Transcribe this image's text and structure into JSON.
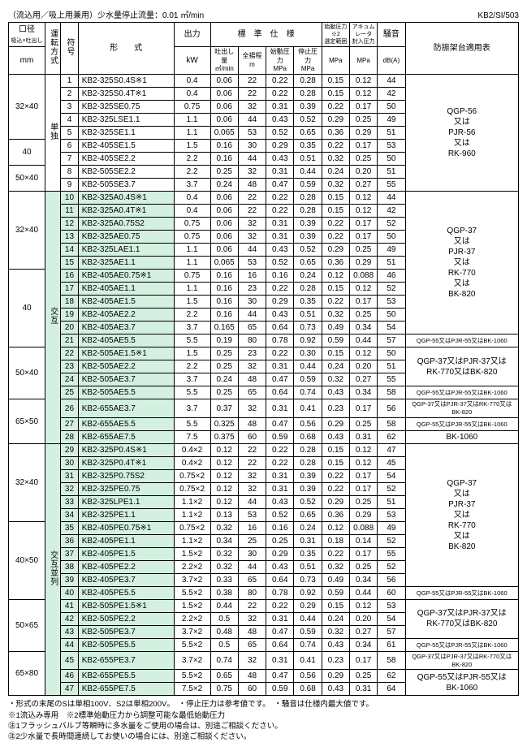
{
  "header": {
    "left": "（流込用／吸上用兼用）少水量停止流量：0.01 ㎥/min",
    "right": "KB2/SI/503"
  },
  "th": {
    "koukei1": "口径",
    "koukei2": "吸込×吐出し",
    "koukei3": "mm",
    "unten": "運転方式",
    "fugou": "符号",
    "keishiki": "形　　式",
    "shutsu1": "出力",
    "shutsu2": "kW",
    "hyoujun": "標　準　仕　様",
    "toshutsu1": "吐出し量",
    "toshutsu2": "㎥/min",
    "zenyoutei1": "全揚程",
    "zenyoutei2": "m",
    "shidou1": "始動圧力",
    "shidou2": "MPa",
    "teishi1": "停止圧力",
    "teishi2": "MPa",
    "shidou21": "始動圧力※2",
    "shidou22": "選定範囲",
    "shidou23": "MPa",
    "akyumu1": "アキュムレータ",
    "akyumu2": "封入圧力",
    "akyumu3": "MPa",
    "souon1": "騒音",
    "souon2": "dB(A)",
    "boushin": "防振架台適用表"
  },
  "mode": {
    "tandoku": "単独",
    "kougo": "交互",
    "kougoheiretsu": "交互並列"
  },
  "notes": {
    "n1": "・形式の末尾のSは単相100V、S2は単相200V。　・停止圧力は参考値です。　・騒音は仕様内最大値です。",
    "n2": "※1流込み専用　※2標準始動圧力から調整可能な最低始動圧力",
    "n3": "㊟1フラッシュバルブ等瞬時に多水量をご使用の場合は、別途ご相談ください。",
    "n4": "㊟2少水量で長時間連続してお使いの場合には、別途ご相談ください。"
  },
  "rows": [
    {
      "n": "1",
      "m": "KB2-325S0.4S※1",
      "kw": "0.4",
      "q": "0.06",
      "h": "22",
      "p1": "0.22",
      "p2": "0.28",
      "p3": "0.15",
      "p4": "0.12",
      "db": "44"
    },
    {
      "n": "2",
      "m": "KB2-325S0.4T※1",
      "kw": "0.4",
      "q": "0.06",
      "h": "22",
      "p1": "0.22",
      "p2": "0.28",
      "p3": "0.15",
      "p4": "0.12",
      "db": "42"
    },
    {
      "n": "3",
      "m": "KB2-325SE0.75",
      "kw": "0.75",
      "q": "0.06",
      "h": "32",
      "p1": "0.31",
      "p2": "0.39",
      "p3": "0.22",
      "p4": "0.17",
      "db": "50"
    },
    {
      "n": "4",
      "m": "KB2-325LSE1.1",
      "kw": "1.1",
      "q": "0.06",
      "h": "44",
      "p1": "0.43",
      "p2": "0.52",
      "p3": "0.29",
      "p4": "0.25",
      "db": "49"
    },
    {
      "n": "5",
      "m": "KB2-325SE1.1",
      "kw": "1.1",
      "q": "0.065",
      "h": "53",
      "p1": "0.52",
      "p2": "0.65",
      "p3": "0.36",
      "p4": "0.29",
      "db": "51"
    },
    {
      "n": "6",
      "m": "KB2-405SE1.5",
      "kw": "1.5",
      "q": "0.16",
      "h": "30",
      "p1": "0.29",
      "p2": "0.35",
      "p3": "0.22",
      "p4": "0.17",
      "db": "53"
    },
    {
      "n": "7",
      "m": "KB2-405SE2.2",
      "kw": "2.2",
      "q": "0.16",
      "h": "44",
      "p1": "0.43",
      "p2": "0.51",
      "p3": "0.32",
      "p4": "0.25",
      "db": "50"
    },
    {
      "n": "8",
      "m": "KB2-505SE2.2",
      "kw": "2.2",
      "q": "0.25",
      "h": "32",
      "p1": "0.31",
      "p2": "0.44",
      "p3": "0.24",
      "p4": "0.20",
      "db": "51"
    },
    {
      "n": "9",
      "m": "KB2-505SE3.7",
      "kw": "3.7",
      "q": "0.24",
      "h": "48",
      "p1": "0.47",
      "p2": "0.59",
      "p3": "0.32",
      "p4": "0.27",
      "db": "55"
    },
    {
      "n": "10",
      "m": "KB2-325A0.4S※1",
      "kw": "0.4",
      "q": "0.06",
      "h": "22",
      "p1": "0.22",
      "p2": "0.28",
      "p3": "0.15",
      "p4": "0.12",
      "db": "44"
    },
    {
      "n": "11",
      "m": "KB2-325A0.4T※1",
      "kw": "0.4",
      "q": "0.06",
      "h": "22",
      "p1": "0.22",
      "p2": "0.28",
      "p3": "0.15",
      "p4": "0.12",
      "db": "42"
    },
    {
      "n": "12",
      "m": "KB2-325A0.75S2",
      "kw": "0.75",
      "q": "0.06",
      "h": "32",
      "p1": "0.31",
      "p2": "0.39",
      "p3": "0.22",
      "p4": "0.17",
      "db": "52"
    },
    {
      "n": "13",
      "m": "KB2-325AE0.75",
      "kw": "0.75",
      "q": "0.06",
      "h": "32",
      "p1": "0.31",
      "p2": "0.39",
      "p3": "0.22",
      "p4": "0.17",
      "db": "50"
    },
    {
      "n": "14",
      "m": "KB2-325LAE1.1",
      "kw": "1.1",
      "q": "0.06",
      "h": "44",
      "p1": "0.43",
      "p2": "0.52",
      "p3": "0.29",
      "p4": "0.25",
      "db": "49"
    },
    {
      "n": "15",
      "m": "KB2-325AE1.1",
      "kw": "1.1",
      "q": "0.065",
      "h": "53",
      "p1": "0.52",
      "p2": "0.65",
      "p3": "0.36",
      "p4": "0.29",
      "db": "51"
    },
    {
      "n": "16",
      "m": "KB2-405AE0.75※1",
      "kw": "0.75",
      "q": "0.16",
      "h": "16",
      "p1": "0.16",
      "p2": "0.24",
      "p3": "0.12",
      "p4": "0.088",
      "db": "46"
    },
    {
      "n": "17",
      "m": "KB2-405AE1.1",
      "kw": "1.1",
      "q": "0.16",
      "h": "23",
      "p1": "0.22",
      "p2": "0.28",
      "p3": "0.15",
      "p4": "0.12",
      "db": "52"
    },
    {
      "n": "18",
      "m": "KB2-405AE1.5",
      "kw": "1.5",
      "q": "0.16",
      "h": "30",
      "p1": "0.29",
      "p2": "0.35",
      "p3": "0.22",
      "p4": "0.17",
      "db": "53"
    },
    {
      "n": "19",
      "m": "KB2-405AE2.2",
      "kw": "2.2",
      "q": "0.16",
      "h": "44",
      "p1": "0.43",
      "p2": "0.51",
      "p3": "0.32",
      "p4": "0.25",
      "db": "50"
    },
    {
      "n": "20",
      "m": "KB2-405AE3.7",
      "kw": "3.7",
      "q": "0.165",
      "h": "65",
      "p1": "0.64",
      "p2": "0.73",
      "p3": "0.49",
      "p4": "0.34",
      "db": "54"
    },
    {
      "n": "21",
      "m": "KB2-405AE5.5",
      "kw": "5.5",
      "q": "0.19",
      "h": "80",
      "p1": "0.78",
      "p2": "0.92",
      "p3": "0.59",
      "p4": "0.44",
      "db": "57"
    },
    {
      "n": "22",
      "m": "KB2-505AE1.5※1",
      "kw": "1.5",
      "q": "0.25",
      "h": "23",
      "p1": "0.22",
      "p2": "0.30",
      "p3": "0.15",
      "p4": "0.12",
      "db": "50"
    },
    {
      "n": "23",
      "m": "KB2-505AE2.2",
      "kw": "2.2",
      "q": "0.25",
      "h": "32",
      "p1": "0.31",
      "p2": "0.44",
      "p3": "0.24",
      "p4": "0.20",
      "db": "51"
    },
    {
      "n": "24",
      "m": "KB2-505AE3.7",
      "kw": "3.7",
      "q": "0.24",
      "h": "48",
      "p1": "0.47",
      "p2": "0.59",
      "p3": "0.32",
      "p4": "0.27",
      "db": "55"
    },
    {
      "n": "25",
      "m": "KB2-505AE5.5",
      "kw": "5.5",
      "q": "0.25",
      "h": "65",
      "p1": "0.64",
      "p2": "0.74",
      "p3": "0.43",
      "p4": "0.34",
      "db": "58"
    },
    {
      "n": "26",
      "m": "KB2-655AE3.7",
      "kw": "3.7",
      "q": "0.37",
      "h": "32",
      "p1": "0.31",
      "p2": "0.41",
      "p3": "0.23",
      "p4": "0.17",
      "db": "56"
    },
    {
      "n": "27",
      "m": "KB2-655AE5.5",
      "kw": "5.5",
      "q": "0.325",
      "h": "48",
      "p1": "0.47",
      "p2": "0.56",
      "p3": "0.29",
      "p4": "0.25",
      "db": "58"
    },
    {
      "n": "28",
      "m": "KB2-655AE7.5",
      "kw": "7.5",
      "q": "0.375",
      "h": "60",
      "p1": "0.59",
      "p2": "0.68",
      "p3": "0.43",
      "p4": "0.31",
      "db": "62"
    },
    {
      "n": "29",
      "m": "KB2-325P0.4S※1",
      "kw": "0.4×2",
      "q": "0.12",
      "h": "22",
      "p1": "0.22",
      "p2": "0.28",
      "p3": "0.15",
      "p4": "0.12",
      "db": "47"
    },
    {
      "n": "30",
      "m": "KB2-325P0.4T※1",
      "kw": "0.4×2",
      "q": "0.12",
      "h": "22",
      "p1": "0.22",
      "p2": "0.28",
      "p3": "0.15",
      "p4": "0.12",
      "db": "45"
    },
    {
      "n": "31",
      "m": "KB2-325P0.75S2",
      "kw": "0.75×2",
      "q": "0.12",
      "h": "32",
      "p1": "0.31",
      "p2": "0.39",
      "p3": "0.22",
      "p4": "0.17",
      "db": "54"
    },
    {
      "n": "32",
      "m": "KB2-325PE0.75",
      "kw": "0.75×2",
      "q": "0.12",
      "h": "32",
      "p1": "0.31",
      "p2": "0.39",
      "p3": "0.22",
      "p4": "0.17",
      "db": "52"
    },
    {
      "n": "33",
      "m": "KB2-325LPE1.1",
      "kw": "1.1×2",
      "q": "0.12",
      "h": "44",
      "p1": "0.43",
      "p2": "0.52",
      "p3": "0.29",
      "p4": "0.25",
      "db": "51"
    },
    {
      "n": "34",
      "m": "KB2-325PE1.1",
      "kw": "1.1×2",
      "q": "0.13",
      "h": "53",
      "p1": "0.52",
      "p2": "0.65",
      "p3": "0.36",
      "p4": "0.29",
      "db": "53"
    },
    {
      "n": "35",
      "m": "KB2-405PE0.75※1",
      "kw": "0.75×2",
      "q": "0.32",
      "h": "16",
      "p1": "0.16",
      "p2": "0.24",
      "p3": "0.12",
      "p4": "0.088",
      "db": "49"
    },
    {
      "n": "36",
      "m": "KB2-405PE1.1",
      "kw": "1.1×2",
      "q": "0.34",
      "h": "25",
      "p1": "0.25",
      "p2": "0.31",
      "p3": "0.18",
      "p4": "0.14",
      "db": "52"
    },
    {
      "n": "37",
      "m": "KB2-405PE1.5",
      "kw": "1.5×2",
      "q": "0.32",
      "h": "30",
      "p1": "0.29",
      "p2": "0.35",
      "p3": "0.22",
      "p4": "0.17",
      "db": "55"
    },
    {
      "n": "38",
      "m": "KB2-405PE2.2",
      "kw": "2.2×2",
      "q": "0.32",
      "h": "44",
      "p1": "0.43",
      "p2": "0.51",
      "p3": "0.32",
      "p4": "0.25",
      "db": "52"
    },
    {
      "n": "39",
      "m": "KB2-405PE3.7",
      "kw": "3.7×2",
      "q": "0.33",
      "h": "65",
      "p1": "0.64",
      "p2": "0.73",
      "p3": "0.49",
      "p4": "0.34",
      "db": "56"
    },
    {
      "n": "40",
      "m": "KB2-405PE5.5",
      "kw": "5.5×2",
      "q": "0.38",
      "h": "80",
      "p1": "0.78",
      "p2": "0.92",
      "p3": "0.59",
      "p4": "0.44",
      "db": "60"
    },
    {
      "n": "41",
      "m": "KB2-505PE1.5※1",
      "kw": "1.5×2",
      "q": "0.44",
      "h": "22",
      "p1": "0.22",
      "p2": "0.29",
      "p3": "0.15",
      "p4": "0.12",
      "db": "53"
    },
    {
      "n": "42",
      "m": "KB2-505PE2.2",
      "kw": "2.2×2",
      "q": "0.5",
      "h": "32",
      "p1": "0.31",
      "p2": "0.44",
      "p3": "0.24",
      "p4": "0.20",
      "db": "54"
    },
    {
      "n": "43",
      "m": "KB2-505PE3.7",
      "kw": "3.7×2",
      "q": "0.48",
      "h": "48",
      "p1": "0.47",
      "p2": "0.59",
      "p3": "0.32",
      "p4": "0.27",
      "db": "57"
    },
    {
      "n": "44",
      "m": "KB2-505PE5.5",
      "kw": "5.5×2",
      "q": "0.5",
      "h": "65",
      "p1": "0.64",
      "p2": "0.74",
      "p3": "0.43",
      "p4": "0.34",
      "db": "61"
    },
    {
      "n": "45",
      "m": "KB2-655PE3.7",
      "kw": "3.7×2",
      "q": "0.74",
      "h": "32",
      "p1": "0.31",
      "p2": "0.41",
      "p3": "0.23",
      "p4": "0.17",
      "db": "58"
    },
    {
      "n": "46",
      "m": "KB2-655PE5.5",
      "kw": "5.5×2",
      "q": "0.65",
      "h": "48",
      "p1": "0.47",
      "p2": "0.56",
      "p3": "0.29",
      "p4": "0.25",
      "db": "62"
    },
    {
      "n": "47",
      "m": "KB2-655PE7.5",
      "kw": "7.5×2",
      "q": "0.75",
      "h": "60",
      "p1": "0.59",
      "p2": "0.68",
      "p3": "0.43",
      "p4": "0.31",
      "db": "64"
    }
  ],
  "koukei": {
    "g1": "32×40",
    "g2": "40",
    "g3": "50×40",
    "g4": "32×40",
    "g5": "40",
    "g6": "50×40",
    "g7": "65×50",
    "g8": "32×40",
    "g9": "40×50",
    "g10": "50×65",
    "g11": "65×80"
  },
  "boushin": {
    "b1": "QGP-56\n又は\nPJR-56\n又は\nRK-960",
    "b2": "QGP-37\n又は\nPJR-37\n又は\nRK-770\n又は\nBK-820",
    "b3": "QGP-55又はPJR-55又はBK-1060",
    "b4": "QGP-37又はPJR-37又は\nRK-770又はBK-820",
    "b5": "QGP-55又はPJR-55又はBK-1060",
    "b6": "QGP-37又はPJR-37又はRK-770又はBK-820",
    "b7": "QGP-55又はPJR-55又はBK-1060",
    "b8": "BK-1060",
    "b9": "QGP-37\n又は\nPJR-37\n又は\nRK-770\n又は\nBK-820",
    "b10": "QGP-55又はPJR-55又はBK-1060",
    "b11": "QGP-37又はPJR-37又は\nRK-770又はBK-820",
    "b12": "QGP-55又はPJR-55又はBK-1060",
    "b13": "QGP-37又はPJR-37又はRK-770又はBK-820",
    "b14": "QGP-55又はPJR-55又は\nBK-1060"
  }
}
